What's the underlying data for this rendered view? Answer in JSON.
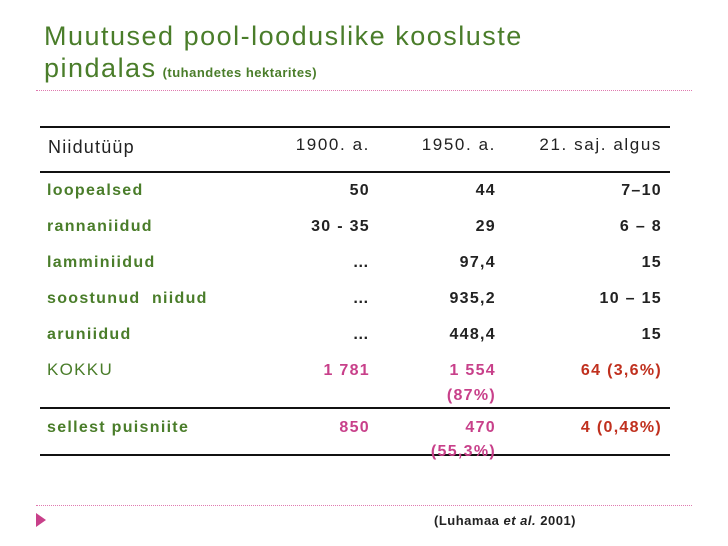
{
  "title": {
    "main_line1": "Muutused pool-looduslike koosluste",
    "main_line2": "pindalas",
    "subtitle": "(tuhandetes hektarites)"
  },
  "table": {
    "headers": [
      "Niidutüüp",
      "1900. a.",
      "1950. a.",
      "21. saj. algus"
    ],
    "rows": [
      {
        "type": "loopealsed",
        "y1900": "50",
        "y1950": "44",
        "y21": "7–10"
      },
      {
        "type": "rannaniidud",
        "y1900": "30 - 35",
        "y1950": "29",
        "y21": "6 – 8"
      },
      {
        "type": "lamminiidud",
        "y1900": "…",
        "y1950": "97,4",
        "y21": "15"
      },
      {
        "type": "soostunud  niidud",
        "y1900": "…",
        "y1950": "935,2",
        "y21": "10 – 15"
      },
      {
        "type": "aruniidud",
        "y1900": "…",
        "y1950": "448,4",
        "y21": "15"
      }
    ],
    "total": {
      "label": "KOKKU",
      "y1900": "1 781",
      "y1950_line1": "1 554",
      "y1950_line2": "(87%)",
      "y21": "64  (3,6%)"
    },
    "hay": {
      "label": "sellest puisniite",
      "y1900": "850",
      "y1950_line1": "470",
      "y1950_line2": "(55,3%)",
      "y21": "4 (0,48%)"
    }
  },
  "source": {
    "prefix": "(Luhamaa ",
    "etal": "et al.",
    "suffix": " 2001)"
  },
  "colors": {
    "title_green": "#4a7d2a",
    "accent_pink": "#c8408a",
    "red": "#c0301e"
  }
}
